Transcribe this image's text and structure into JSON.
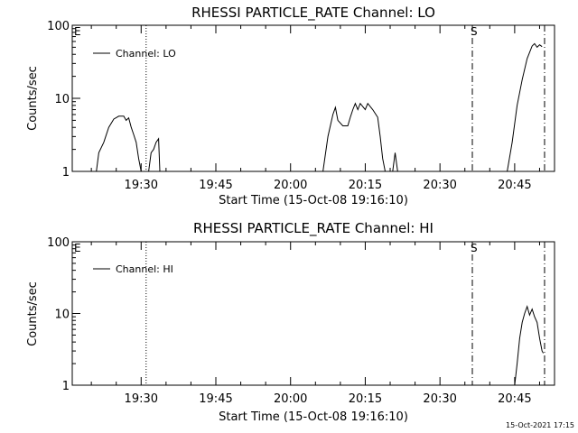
{
  "footer_timestamp": "15-Oct-2021 17:15",
  "chart_data": [
    {
      "type": "line",
      "title": "RHESSI PARTICLE_RATE Channel: LO",
      "xlabel": "Start Time (15-Oct-08 19:16:10)",
      "ylabel": "Counts/sec",
      "y_scale": "log",
      "ylim": [
        1,
        100
      ],
      "y_ticks": [
        1,
        10,
        100
      ],
      "y_tick_labels": [
        "1",
        "10",
        "100"
      ],
      "xlim": [
        "19:16:10",
        "20:53:00"
      ],
      "x_ticks": [
        "19:30",
        "19:45",
        "20:00",
        "20:15",
        "20:30",
        "20:45"
      ],
      "legend": {
        "entries": [
          "Channel: LO"
        ],
        "placement": "top-left"
      },
      "markers": [
        {
          "time": "19:31:00",
          "style": "dotted",
          "label": ""
        },
        {
          "time": "20:36:30",
          "style": "dash-dot",
          "label": "S"
        },
        {
          "time": "20:51:00",
          "style": "dash-dot",
          "label": ""
        }
      ],
      "flag_labels": [
        "E"
      ],
      "series": [
        {
          "name": "Channel: LO",
          "segments": [
            [
              [
                "19:21:00",
                1
              ],
              [
                "19:21:30",
                1.8
              ],
              [
                "19:22:30",
                2.5
              ],
              [
                "19:23:30",
                4.0
              ],
              [
                "19:24:30",
                5.2
              ],
              [
                "19:25:30",
                5.7
              ],
              [
                "19:26:30",
                5.7
              ],
              [
                "19:27:00",
                5.0
              ],
              [
                "19:27:30",
                5.4
              ],
              [
                "19:28:00",
                4.0
              ],
              [
                "19:28:30",
                3.2
              ],
              [
                "19:29:00",
                2.5
              ],
              [
                "19:29:30",
                1.5
              ],
              [
                "19:30:00",
                1
              ]
            ],
            [
              [
                "19:31:30",
                1
              ],
              [
                "19:32:00",
                1.8
              ],
              [
                "19:32:30",
                2.0
              ],
              [
                "19:33:00",
                2.5
              ],
              [
                "19:33:30",
                2.8
              ],
              [
                "19:33:45",
                1
              ]
            ],
            [
              [
                "20:06:30",
                1
              ],
              [
                "20:07:30",
                3.0
              ],
              [
                "20:08:30",
                6.0
              ],
              [
                "20:09:00",
                7.5
              ],
              [
                "20:09:30",
                5.0
              ],
              [
                "20:10:30",
                4.2
              ],
              [
                "20:11:30",
                4.2
              ],
              [
                "20:12:00",
                5.5
              ],
              [
                "20:12:30",
                7.0
              ],
              [
                "20:13:00",
                8.5
              ],
              [
                "20:13:30",
                7.0
              ],
              [
                "20:14:00",
                8.5
              ],
              [
                "20:15:00",
                7.0
              ],
              [
                "20:15:30",
                8.5
              ],
              [
                "20:16:30",
                7.0
              ],
              [
                "20:17:30",
                5.5
              ],
              [
                "20:18:00",
                3.0
              ],
              [
                "20:18:30",
                1.5
              ],
              [
                "20:19:00",
                1
              ]
            ],
            [
              [
                "20:20:30",
                1
              ],
              [
                "20:21:00",
                1.8
              ],
              [
                "20:21:30",
                1
              ]
            ],
            [
              [
                "20:43:30",
                1
              ],
              [
                "20:44:30",
                2.5
              ],
              [
                "20:45:30",
                8.0
              ],
              [
                "20:46:30",
                18
              ],
              [
                "20:47:30",
                35
              ],
              [
                "20:48:30",
                52
              ],
              [
                "20:49:00",
                56
              ],
              [
                "20:49:30",
                50
              ],
              [
                "20:50:00",
                54
              ],
              [
                "20:50:30",
                51
              ]
            ]
          ]
        }
      ]
    },
    {
      "type": "line",
      "title": "RHESSI PARTICLE_RATE Channel: HI",
      "xlabel": "Start Time (15-Oct-08 19:16:10)",
      "ylabel": "Counts/sec",
      "y_scale": "log",
      "ylim": [
        1,
        100
      ],
      "y_ticks": [
        1,
        10,
        100
      ],
      "y_tick_labels": [
        "1",
        "10",
        "100"
      ],
      "xlim": [
        "19:16:10",
        "20:53:00"
      ],
      "x_ticks": [
        "19:30",
        "19:45",
        "20:00",
        "20:15",
        "20:30",
        "20:45"
      ],
      "legend": {
        "entries": [
          "Channel: HI"
        ],
        "placement": "top-left"
      },
      "markers": [
        {
          "time": "19:31:00",
          "style": "dotted",
          "label": ""
        },
        {
          "time": "20:36:30",
          "style": "dash-dot",
          "label": "S"
        },
        {
          "time": "20:51:00",
          "style": "dash-dot",
          "label": ""
        }
      ],
      "flag_labels": [
        "E"
      ],
      "series": [
        {
          "name": "Channel: HI",
          "segments": [
            [
              [
                "20:45:00",
                1
              ],
              [
                "20:45:30",
                2.0
              ],
              [
                "20:46:00",
                4.5
              ],
              [
                "20:46:30",
                7.5
              ],
              [
                "20:47:00",
                10.0
              ],
              [
                "20:47:30",
                12.5
              ],
              [
                "20:48:00",
                9.5
              ],
              [
                "20:48:30",
                11.5
              ],
              [
                "20:49:00",
                9.0
              ],
              [
                "20:49:30",
                7.5
              ],
              [
                "20:50:00",
                4.5
              ],
              [
                "20:50:30",
                3.0
              ],
              [
                "20:50:45",
                2.8
              ]
            ]
          ]
        }
      ]
    }
  ]
}
